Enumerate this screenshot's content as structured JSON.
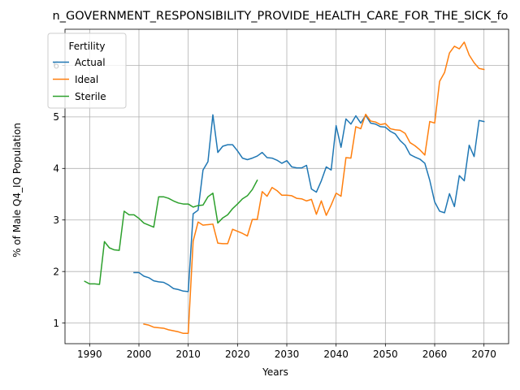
{
  "chart_data": {
    "type": "line",
    "title": "n_GOVERNMENT_RESPONSIBILITY_PROVIDE_HEALTH_CARE_FOR_THE_SICK_fo",
    "xlabel": "Years",
    "ylabel": "% of Male Q4_IQ Population",
    "xlim": [
      1985,
      2075
    ],
    "ylim": [
      0.6,
      6.7
    ],
    "xticks": [
      1990,
      2000,
      2010,
      2020,
      2030,
      2040,
      2050,
      2060,
      2070
    ],
    "yticks": [
      1,
      2,
      3,
      4,
      5,
      6
    ],
    "grid": true,
    "legend": {
      "title": "Fertility",
      "placement": "upper-left"
    },
    "series": [
      {
        "name": "Actual",
        "color": "#1f77b4",
        "points": [
          [
            1999,
            1.98
          ],
          [
            2000,
            1.98
          ],
          [
            2001,
            1.91
          ],
          [
            2002,
            1.88
          ],
          [
            2003,
            1.82
          ],
          [
            2004,
            1.8
          ],
          [
            2005,
            1.79
          ],
          [
            2006,
            1.74
          ],
          [
            2007,
            1.67
          ],
          [
            2008,
            1.65
          ],
          [
            2009,
            1.62
          ],
          [
            2010,
            1.61
          ],
          [
            2011,
            3.12
          ],
          [
            2012,
            3.19
          ],
          [
            2013,
            3.97
          ],
          [
            2014,
            4.13
          ],
          [
            2015,
            5.04
          ],
          [
            2016,
            4.31
          ],
          [
            2017,
            4.43
          ],
          [
            2018,
            4.46
          ],
          [
            2019,
            4.46
          ],
          [
            2020,
            4.34
          ],
          [
            2021,
            4.2
          ],
          [
            2022,
            4.17
          ],
          [
            2023,
            4.2
          ],
          [
            2024,
            4.24
          ],
          [
            2025,
            4.31
          ],
          [
            2026,
            4.21
          ],
          [
            2027,
            4.2
          ],
          [
            2028,
            4.16
          ],
          [
            2029,
            4.1
          ],
          [
            2030,
            4.15
          ],
          [
            2031,
            4.03
          ],
          [
            2032,
            4.01
          ],
          [
            2033,
            4.01
          ],
          [
            2034,
            4.06
          ],
          [
            2035,
            3.6
          ],
          [
            2036,
            3.54
          ],
          [
            2037,
            3.76
          ],
          [
            2038,
            4.03
          ],
          [
            2039,
            3.97
          ],
          [
            2040,
            4.83
          ],
          [
            2041,
            4.41
          ],
          [
            2042,
            4.96
          ],
          [
            2043,
            4.86
          ],
          [
            2044,
            5.02
          ],
          [
            2045,
            4.88
          ],
          [
            2046,
            5.03
          ],
          [
            2047,
            4.88
          ],
          [
            2048,
            4.86
          ],
          [
            2049,
            4.81
          ],
          [
            2050,
            4.8
          ],
          [
            2051,
            4.72
          ],
          [
            2052,
            4.67
          ],
          [
            2053,
            4.54
          ],
          [
            2054,
            4.45
          ],
          [
            2055,
            4.27
          ],
          [
            2056,
            4.22
          ],
          [
            2057,
            4.18
          ],
          [
            2058,
            4.1
          ],
          [
            2059,
            3.77
          ],
          [
            2060,
            3.35
          ],
          [
            2061,
            3.17
          ],
          [
            2062,
            3.14
          ],
          [
            2063,
            3.51
          ],
          [
            2064,
            3.26
          ],
          [
            2065,
            3.86
          ],
          [
            2066,
            3.76
          ],
          [
            2067,
            4.45
          ],
          [
            2068,
            4.23
          ],
          [
            2069,
            4.93
          ],
          [
            2070,
            4.91
          ]
        ]
      },
      {
        "name": "Ideal",
        "color": "#ff7f0e",
        "points": [
          [
            2001,
            0.98
          ],
          [
            2002,
            0.96
          ],
          [
            2003,
            0.92
          ],
          [
            2004,
            0.91
          ],
          [
            2005,
            0.9
          ],
          [
            2006,
            0.87
          ],
          [
            2007,
            0.85
          ],
          [
            2008,
            0.83
          ],
          [
            2009,
            0.8
          ],
          [
            2010,
            0.8
          ],
          [
            2011,
            2.59
          ],
          [
            2012,
            2.96
          ],
          [
            2013,
            2.9
          ],
          [
            2014,
            2.91
          ],
          [
            2015,
            2.92
          ],
          [
            2016,
            2.55
          ],
          [
            2017,
            2.54
          ],
          [
            2018,
            2.54
          ],
          [
            2019,
            2.82
          ],
          [
            2020,
            2.78
          ],
          [
            2021,
            2.74
          ],
          [
            2022,
            2.69
          ],
          [
            2023,
            3.01
          ],
          [
            2024,
            3.01
          ],
          [
            2025,
            3.55
          ],
          [
            2026,
            3.46
          ],
          [
            2027,
            3.63
          ],
          [
            2028,
            3.57
          ],
          [
            2029,
            3.48
          ],
          [
            2030,
            3.48
          ],
          [
            2031,
            3.47
          ],
          [
            2032,
            3.42
          ],
          [
            2033,
            3.41
          ],
          [
            2034,
            3.37
          ],
          [
            2035,
            3.4
          ],
          [
            2036,
            3.11
          ],
          [
            2037,
            3.37
          ],
          [
            2038,
            3.09
          ],
          [
            2039,
            3.29
          ],
          [
            2040,
            3.52
          ],
          [
            2041,
            3.46
          ],
          [
            2042,
            4.21
          ],
          [
            2043,
            4.2
          ],
          [
            2044,
            4.81
          ],
          [
            2045,
            4.77
          ],
          [
            2046,
            5.05
          ],
          [
            2047,
            4.92
          ],
          [
            2048,
            4.9
          ],
          [
            2049,
            4.85
          ],
          [
            2050,
            4.87
          ],
          [
            2051,
            4.77
          ],
          [
            2052,
            4.75
          ],
          [
            2053,
            4.74
          ],
          [
            2054,
            4.68
          ],
          [
            2055,
            4.5
          ],
          [
            2056,
            4.44
          ],
          [
            2057,
            4.36
          ],
          [
            2058,
            4.26
          ],
          [
            2059,
            4.91
          ],
          [
            2060,
            4.88
          ],
          [
            2061,
            5.69
          ],
          [
            2062,
            5.86
          ],
          [
            2063,
            6.24
          ],
          [
            2064,
            6.37
          ],
          [
            2065,
            6.32
          ],
          [
            2066,
            6.45
          ],
          [
            2067,
            6.2
          ],
          [
            2068,
            6.05
          ],
          [
            2069,
            5.94
          ],
          [
            2070,
            5.92
          ]
        ]
      },
      {
        "name": "Sterile",
        "color": "#2ca02c",
        "points": [
          [
            1989,
            1.81
          ],
          [
            1990,
            1.76
          ],
          [
            1991,
            1.76
          ],
          [
            1992,
            1.75
          ],
          [
            1993,
            2.58
          ],
          [
            1994,
            2.46
          ],
          [
            1995,
            2.42
          ],
          [
            1996,
            2.41
          ],
          [
            1997,
            3.17
          ],
          [
            1998,
            3.1
          ],
          [
            1999,
            3.1
          ],
          [
            2000,
            3.03
          ],
          [
            2001,
            2.94
          ],
          [
            2002,
            2.9
          ],
          [
            2003,
            2.86
          ],
          [
            2004,
            3.45
          ],
          [
            2005,
            3.45
          ],
          [
            2006,
            3.42
          ],
          [
            2007,
            3.37
          ],
          [
            2008,
            3.33
          ],
          [
            2009,
            3.31
          ],
          [
            2010,
            3.31
          ],
          [
            2011,
            3.25
          ],
          [
            2012,
            3.28
          ],
          [
            2013,
            3.29
          ],
          [
            2014,
            3.45
          ],
          [
            2015,
            3.52
          ],
          [
            2016,
            2.94
          ],
          [
            2017,
            3.04
          ],
          [
            2018,
            3.1
          ],
          [
            2019,
            3.22
          ],
          [
            2020,
            3.31
          ],
          [
            2021,
            3.41
          ],
          [
            2022,
            3.47
          ],
          [
            2023,
            3.59
          ],
          [
            2024,
            3.77
          ]
        ]
      }
    ]
  }
}
